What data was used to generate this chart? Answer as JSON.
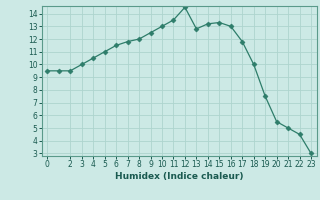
{
  "x": [
    0,
    1,
    2,
    3,
    4,
    5,
    6,
    7,
    8,
    9,
    10,
    11,
    12,
    13,
    14,
    15,
    16,
    17,
    18,
    19,
    20,
    21,
    22,
    23
  ],
  "y": [
    9.5,
    9.5,
    9.5,
    10.0,
    10.5,
    11.0,
    11.5,
    11.8,
    12.0,
    12.5,
    13.0,
    13.5,
    14.5,
    12.8,
    13.2,
    13.3,
    13.0,
    11.8,
    10.0,
    7.5,
    5.5,
    5.0,
    4.5,
    3.0
  ],
  "xlabel": "Humidex (Indice chaleur)",
  "line_color": "#2e7d6a",
  "marker": "D",
  "marker_size": 2.5,
  "bg_color": "#cce9e5",
  "grid_color": "#aed4ce",
  "xlim_min": -0.5,
  "xlim_max": 23.5,
  "ylim_min": 2.8,
  "ylim_max": 14.6,
  "xticks": [
    0,
    2,
    3,
    4,
    5,
    6,
    7,
    8,
    9,
    10,
    11,
    12,
    13,
    14,
    15,
    16,
    17,
    18,
    19,
    20,
    21,
    22,
    23
  ],
  "yticks": [
    3,
    4,
    5,
    6,
    7,
    8,
    9,
    10,
    11,
    12,
    13,
    14
  ],
  "tick_fontsize": 5.5,
  "xlabel_fontsize": 6.5,
  "linewidth": 0.9
}
